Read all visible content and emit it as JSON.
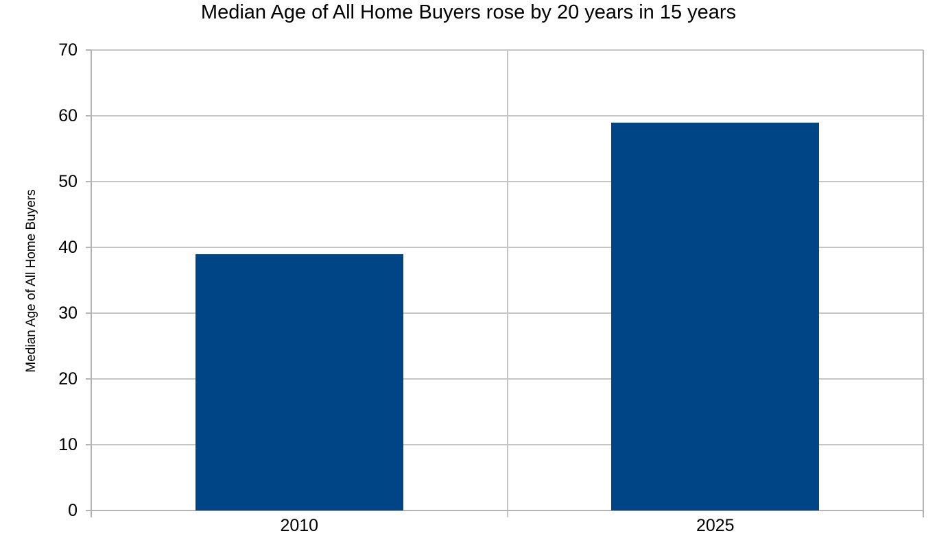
{
  "page": {
    "background": "#ffffff"
  },
  "chart_data": {
    "type": "bar",
    "title": "Median Age of All Home Buyers rose by 20 years in 15 years",
    "xlabel": "",
    "ylabel": "Median Age of All Home Buyers",
    "categories": [
      "2010",
      "2025"
    ],
    "values": [
      39,
      59
    ],
    "ylim": [
      0,
      70
    ],
    "yticks": [
      0,
      10,
      20,
      30,
      40,
      50,
      60,
      70
    ],
    "ytick_step": 10,
    "grid": true,
    "legend": "none",
    "colors": {
      "bar": "#004586",
      "grid": "#c6c6c6",
      "axis": "#b3b3b3",
      "text": "#000000",
      "background": "#ffffff"
    }
  }
}
